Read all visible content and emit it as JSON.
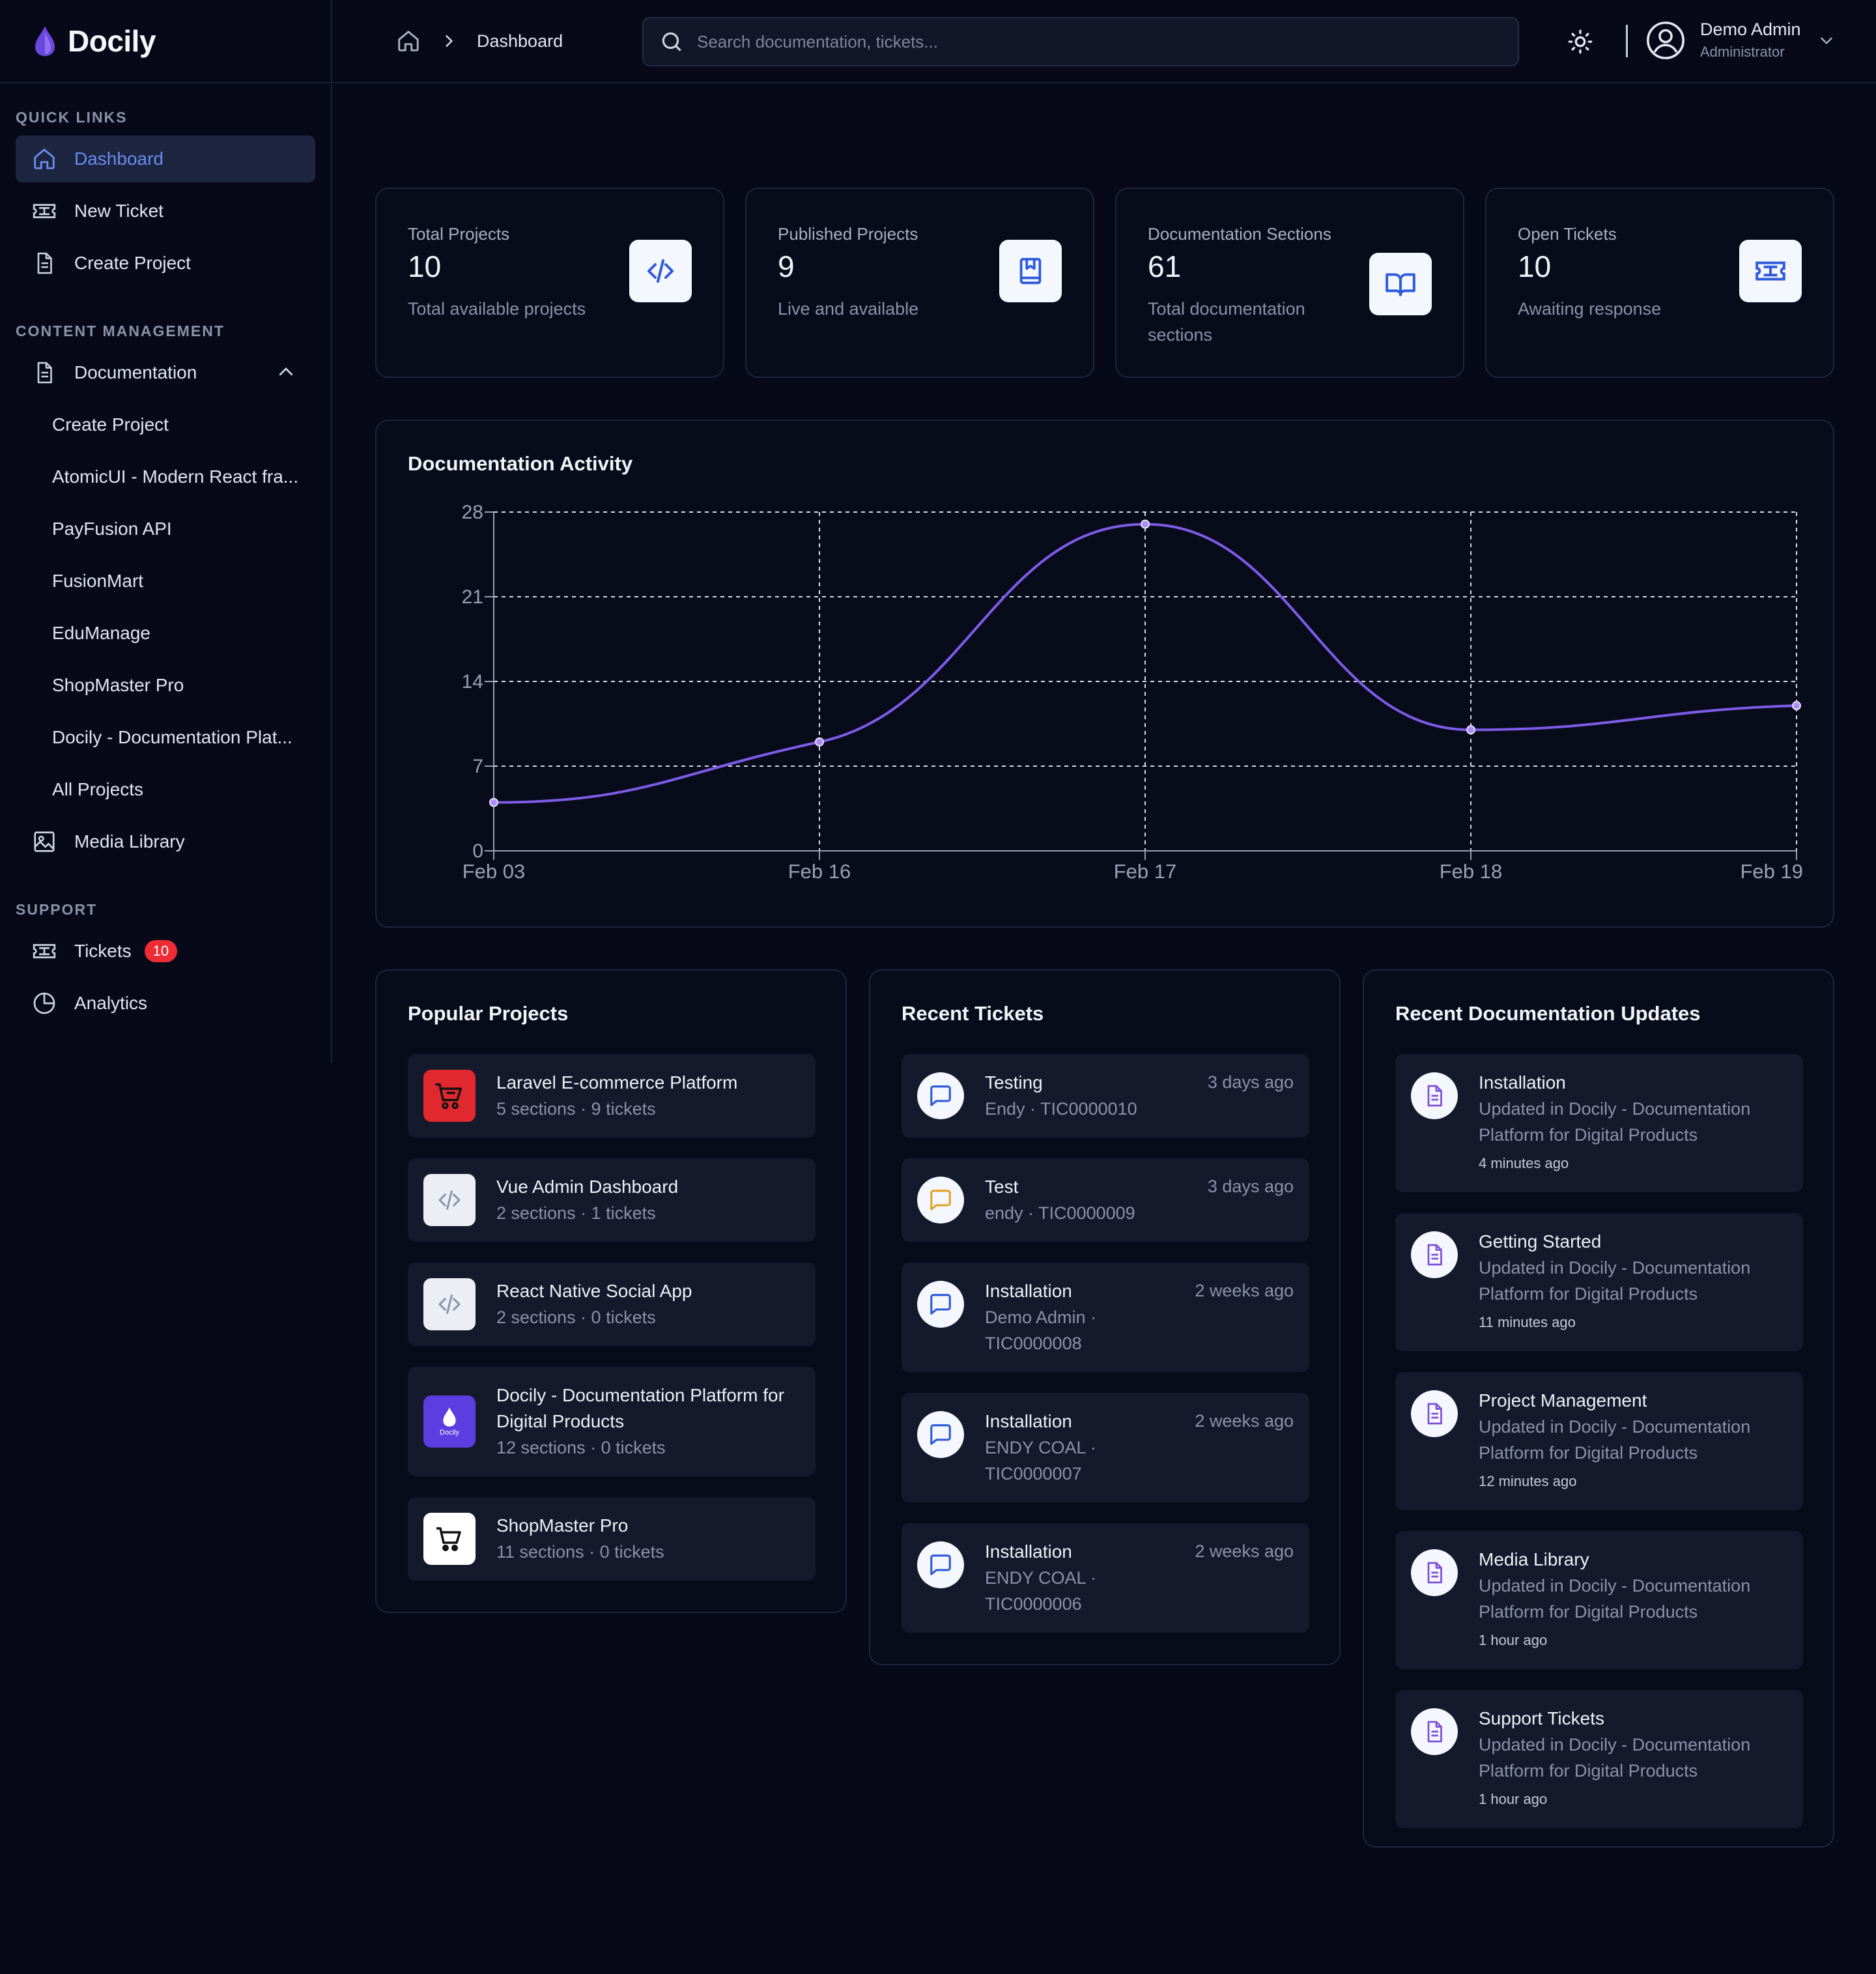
{
  "brand": {
    "name": "Docily"
  },
  "sidebar": {
    "quick_links_heading": "QUICK LINKS",
    "quick_links": [
      {
        "label": "Dashboard",
        "icon": "home-icon",
        "active": true
      },
      {
        "label": "New Ticket",
        "icon": "ticket-icon"
      },
      {
        "label": "Create Project",
        "icon": "document-icon"
      }
    ],
    "content_heading": "CONTENT MANAGEMENT",
    "documentation": {
      "label": "Documentation",
      "children": [
        "Create Project",
        "AtomicUI - Modern React fra...",
        "PayFusion API",
        "FusionMart",
        "EduManage",
        "ShopMaster Pro",
        "Docily - Documentation Plat...",
        "All Projects"
      ]
    },
    "media_library": "Media Library",
    "support_heading": "SUPPORT",
    "tickets": {
      "label": "Tickets",
      "badge": "10"
    },
    "analytics": "Analytics"
  },
  "header": {
    "breadcrumb": "Dashboard",
    "search_placeholder": "Search documentation, tickets...",
    "user_name": "Demo Admin",
    "user_role": "Administrator"
  },
  "stats": [
    {
      "label": "Total Projects",
      "value": "10",
      "sub": "Total available projects",
      "icon": "code-icon"
    },
    {
      "label": "Published Projects",
      "value": "9",
      "sub": "Live and available",
      "icon": "bookmark-book-icon"
    },
    {
      "label": "Documentation Sections",
      "value": "61",
      "sub": "Total documentation sections",
      "icon": "open-book-icon"
    },
    {
      "label": "Open Tickets",
      "value": "10",
      "sub": "Awaiting response",
      "icon": "ticket-icon"
    }
  ],
  "chart_data": {
    "type": "line",
    "title": "Documentation Activity",
    "categories": [
      "Feb 03",
      "Feb 16",
      "Feb 17",
      "Feb 18",
      "Feb 19"
    ],
    "series": [
      {
        "values": [
          4,
          9,
          27,
          10,
          12
        ]
      }
    ],
    "ylim": [
      0,
      28
    ],
    "yticks": [
      0,
      7,
      14,
      21,
      28
    ],
    "grid": true,
    "line_color": "#7c5ce8"
  },
  "popular_projects": {
    "title": "Popular Projects",
    "items": [
      {
        "name": "Laravel E-commerce Platform",
        "meta": "5 sections · 9 tickets",
        "logo": "cart-logo-red"
      },
      {
        "name": "Vue Admin Dashboard",
        "meta": "2 sections · 1 tickets",
        "logo": "code-icon"
      },
      {
        "name": "React Native Social App",
        "meta": "2 sections · 0 tickets",
        "logo": "code-icon"
      },
      {
        "name": "Docily - Documentation Platform for Digital Products",
        "meta": "12 sections · 0 tickets",
        "logo": "docily-logo",
        "logo_text": "Docily"
      },
      {
        "name": "ShopMaster Pro",
        "meta": "11 sections · 0 tickets",
        "logo": "cart-logo-white"
      }
    ]
  },
  "recent_tickets": {
    "title": "Recent Tickets",
    "items": [
      {
        "title": "Testing",
        "meta": "Endy · TIC0000010",
        "time": "3 days ago",
        "color": "#2f5bd9"
      },
      {
        "title": "Test",
        "meta": "endy · TIC0000009",
        "time": "3 days ago",
        "color": "#e0a22a"
      },
      {
        "title": "Installation",
        "meta": "Demo Admin · TIC0000008",
        "time": "2 weeks ago",
        "color": "#2f5bd9"
      },
      {
        "title": "Installation",
        "meta": "ENDY COAL · TIC0000007",
        "time": "2 weeks ago",
        "color": "#2f5bd9"
      },
      {
        "title": "Installation",
        "meta": "ENDY COAL · TIC0000006",
        "time": "2 weeks ago",
        "color": "#2f5bd9"
      }
    ]
  },
  "recent_updates": {
    "title": "Recent Documentation Updates",
    "items": [
      {
        "title": "Installation",
        "meta": "Updated in Docily - Documentation Platform for Digital Products",
        "time": "4 minutes ago"
      },
      {
        "title": "Getting Started",
        "meta": "Updated in Docily - Documentation Platform for Digital Products",
        "time": "11 minutes ago"
      },
      {
        "title": "Project Management",
        "meta": "Updated in Docily - Documentation Platform for Digital Products",
        "time": "12 minutes ago"
      },
      {
        "title": "Media Library",
        "meta": "Updated in Docily - Documentation Platform for Digital Products",
        "time": "1 hour ago"
      },
      {
        "title": "Support Tickets",
        "meta": "Updated in Docily - Documentation Platform for Digital Products",
        "time": "1 hour ago"
      }
    ]
  }
}
